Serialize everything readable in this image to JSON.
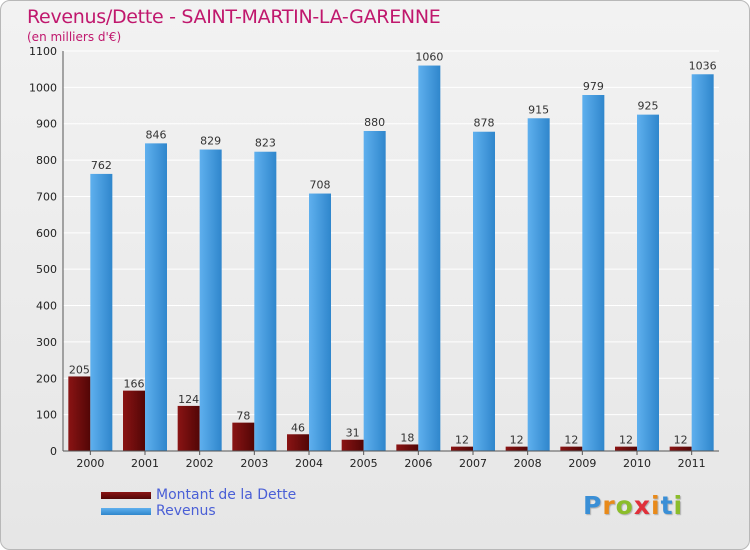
{
  "title": "Revenus/Dette - SAINT-MARTIN-LA-GARENNE",
  "subtitle": "(en milliers d'€)",
  "colors": {
    "debt": "#6b0a0a",
    "revenue": "#3d99df",
    "title": "#c0176d",
    "legend_text": "#4a5fd6",
    "grid": "#ffffff"
  },
  "legend": {
    "debt_label": "Montant de la Dette",
    "revenue_label": "Revenus"
  },
  "logo": {
    "text": "Proxiti"
  },
  "chart_data": {
    "type": "bar",
    "title": "Revenus/Dette - SAINT-MARTIN-LA-GARENNE",
    "subtitle": "(en milliers d'€)",
    "xlabel": "",
    "ylabel": "",
    "ylim": [
      0,
      1100
    ],
    "yticks": [
      0,
      100,
      200,
      300,
      400,
      500,
      600,
      700,
      800,
      900,
      1000,
      1100
    ],
    "grid": true,
    "legend_position": "bottom-left",
    "categories": [
      "2000",
      "2001",
      "2002",
      "2003",
      "2004",
      "2005",
      "2006",
      "2007",
      "2008",
      "2009",
      "2010",
      "2011"
    ],
    "series": [
      {
        "name": "Montant de la Dette",
        "color": "#6b0a0a",
        "values": [
          205,
          166,
          124,
          78,
          46,
          31,
          18,
          12,
          12,
          12,
          12,
          12
        ]
      },
      {
        "name": "Revenus",
        "color": "#3d99df",
        "values": [
          762,
          846,
          829,
          823,
          708,
          880,
          1060,
          878,
          915,
          979,
          925,
          1036
        ]
      }
    ]
  }
}
